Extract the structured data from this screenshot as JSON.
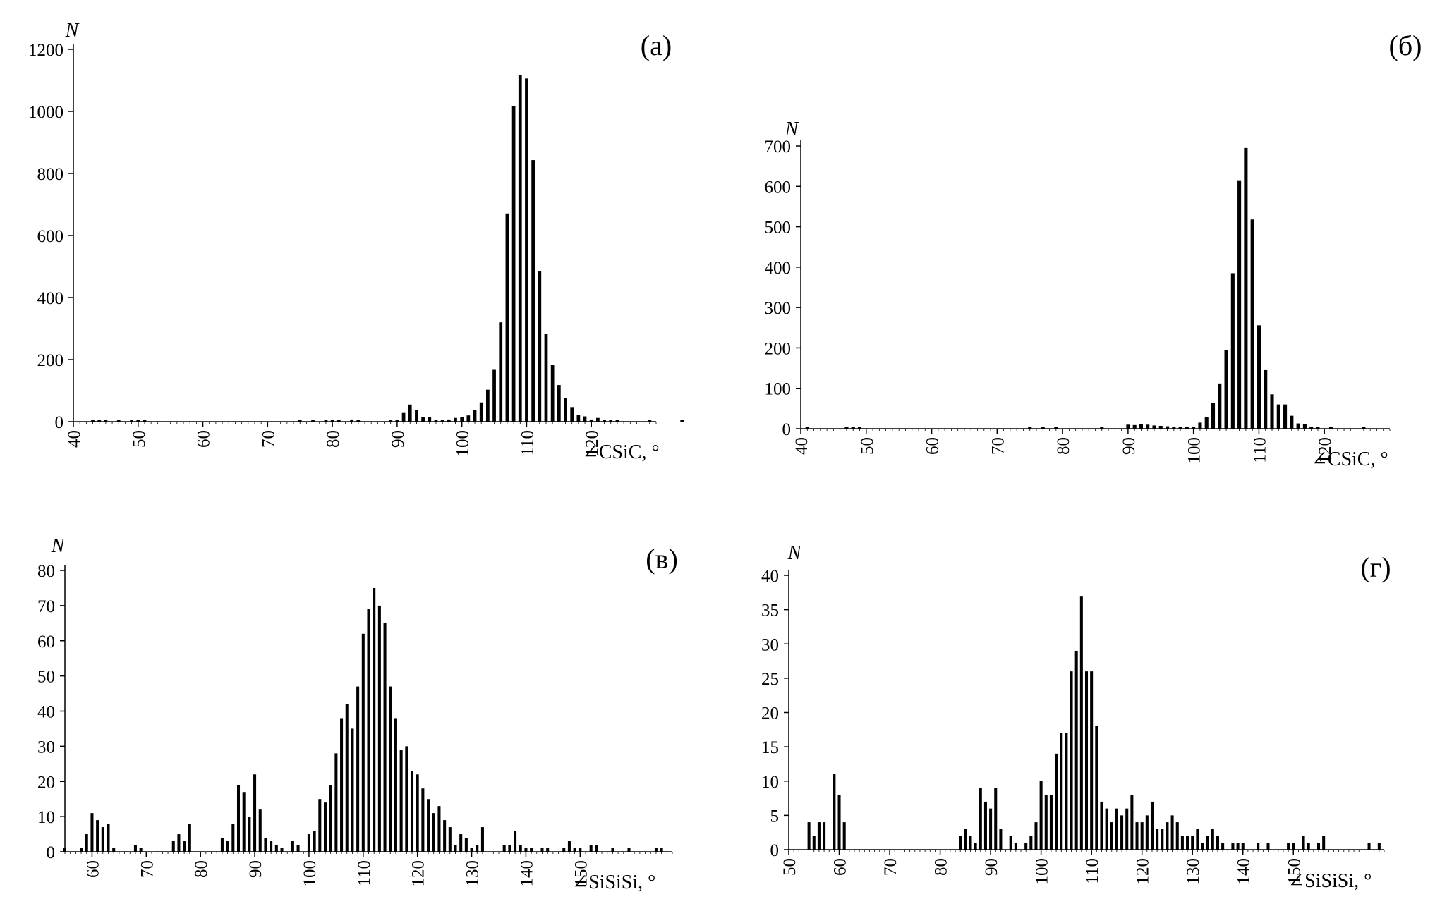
{
  "chart_data": [
    {
      "type": "bar",
      "panel_label": "(а)",
      "ylabel": "N",
      "xlabel": "∠CSiC, °",
      "xlim": [
        40,
        130
      ],
      "ylim": [
        0,
        1200
      ],
      "x_ticks": [
        "40",
        "50",
        "60",
        "70",
        "80",
        "90",
        "100",
        "110",
        "120"
      ],
      "y_ticks": [
        "0",
        "200",
        "400",
        "600",
        "800",
        "1000",
        "1200"
      ],
      "x": [
        43,
        44,
        45,
        47,
        49,
        50,
        51,
        75,
        77,
        79,
        80,
        81,
        83,
        84,
        89,
        90,
        91,
        92,
        93,
        94,
        95,
        96,
        97,
        98,
        99,
        100,
        101,
        102,
        103,
        104,
        105,
        106,
        107,
        108,
        109,
        110,
        111,
        112,
        113,
        114,
        115,
        116,
        117,
        118,
        119,
        120,
        121,
        122,
        123,
        124,
        129,
        134
      ],
      "values": [
        4,
        6,
        3,
        3,
        5,
        3,
        2,
        2,
        5,
        3,
        5,
        3,
        7,
        2,
        3,
        5,
        28,
        55,
        38,
        15,
        14,
        5,
        5,
        7,
        12,
        14,
        20,
        37,
        62,
        103,
        167,
        320,
        671,
        1017,
        1117,
        1106,
        843,
        484,
        282,
        184,
        118,
        77,
        47,
        22,
        17,
        7,
        12,
        6,
        4,
        3,
        2,
        2
      ]
    },
    {
      "type": "bar",
      "panel_label": "(б)",
      "ylabel": "N",
      "xlabel": "∠CSiC, °",
      "xlim": [
        40,
        130
      ],
      "ylim": [
        0,
        700
      ],
      "x_ticks": [
        "40",
        "50",
        "60",
        "70",
        "80",
        "90",
        "100",
        "110",
        "120"
      ],
      "y_ticks": [
        "0",
        "100",
        "200",
        "300",
        "400",
        "500",
        "600",
        "700"
      ],
      "x": [
        41,
        47,
        48,
        49,
        75,
        77,
        79,
        86,
        90,
        91,
        92,
        93,
        94,
        95,
        96,
        97,
        98,
        99,
        100,
        101,
        102,
        103,
        104,
        105,
        106,
        107,
        108,
        109,
        110,
        111,
        112,
        113,
        114,
        115,
        116,
        117,
        118,
        119,
        121,
        126
      ],
      "values": [
        4,
        3,
        4,
        3,
        3,
        3,
        3,
        3,
        10,
        9,
        12,
        10,
        8,
        7,
        6,
        5,
        5,
        5,
        4,
        15,
        28,
        63,
        112,
        195,
        385,
        615,
        695,
        518,
        256,
        145,
        85,
        60,
        60,
        32,
        13,
        12,
        5,
        3,
        3,
        3
      ]
    },
    {
      "type": "bar",
      "panel_label": "(в)",
      "ylabel": "N",
      "xlabel": "∠SiSiSi, °",
      "xlim": [
        55,
        167
      ],
      "ylim": [
        0,
        80
      ],
      "x_ticks": [
        "60",
        "70",
        "80",
        "90",
        "100",
        "110",
        "120",
        "130",
        "140",
        "150"
      ],
      "y_ticks": [
        "0",
        "10",
        "20",
        "30",
        "40",
        "50",
        "60",
        "70",
        "80"
      ],
      "x": [
        55,
        58,
        59,
        60,
        61,
        62,
        63,
        64,
        68,
        69,
        75,
        76,
        77,
        78,
        84,
        85,
        86,
        87,
        88,
        89,
        90,
        91,
        92,
        93,
        94,
        95,
        97,
        98,
        100,
        101,
        102,
        103,
        104,
        105,
        106,
        107,
        108,
        109,
        110,
        111,
        112,
        113,
        114,
        115,
        116,
        117,
        118,
        119,
        120,
        121,
        122,
        123,
        124,
        125,
        126,
        127,
        128,
        129,
        130,
        131,
        132,
        136,
        137,
        138,
        139,
        140,
        141,
        143,
        144,
        147,
        148,
        149,
        150,
        152,
        153,
        156,
        159,
        164,
        165
      ],
      "values": [
        1,
        1,
        5,
        11,
        9,
        7,
        8,
        1,
        2,
        1,
        3,
        5,
        3,
        8,
        4,
        3,
        8,
        19,
        17,
        10,
        22,
        12,
        4,
        3,
        2,
        1,
        3,
        2,
        5,
        6,
        15,
        14,
        19,
        28,
        38,
        42,
        35,
        47,
        62,
        69,
        75,
        70,
        65,
        47,
        38,
        29,
        30,
        23,
        22,
        18,
        15,
        11,
        13,
        9,
        7,
        2,
        5,
        4,
        1,
        2,
        7,
        2,
        2,
        6,
        2,
        1,
        1,
        1,
        1,
        1,
        3,
        1,
        1,
        2,
        2,
        1,
        1,
        1,
        1
      ]
    },
    {
      "type": "bar",
      "panel_label": "(г)",
      "ylabel": "N",
      "xlabel": "∠SiSiSi, °",
      "xlim": [
        50,
        168
      ],
      "ylim": [
        0,
        40
      ],
      "x_ticks": [
        "50",
        "60",
        "70",
        "80",
        "90",
        "100",
        "110",
        "120",
        "130",
        "140",
        "150"
      ],
      "y_ticks": [
        "0",
        "5",
        "10",
        "15",
        "20",
        "25",
        "30",
        "35",
        "40"
      ],
      "x": [
        54,
        55,
        56,
        57,
        59,
        60,
        61,
        84,
        85,
        86,
        87,
        88,
        89,
        90,
        91,
        92,
        94,
        95,
        97,
        98,
        99,
        100,
        101,
        102,
        103,
        104,
        105,
        106,
        107,
        108,
        109,
        110,
        111,
        112,
        113,
        114,
        115,
        116,
        117,
        118,
        119,
        120,
        121,
        122,
        123,
        124,
        125,
        126,
        127,
        128,
        129,
        130,
        131,
        132,
        133,
        134,
        135,
        136,
        138,
        139,
        140,
        143,
        145,
        149,
        150,
        152,
        153,
        155,
        156,
        165,
        167
      ],
      "values": [
        4,
        2,
        4,
        4,
        11,
        8,
        4,
        2,
        3,
        2,
        1,
        9,
        7,
        6,
        9,
        3,
        2,
        1,
        1,
        2,
        4,
        10,
        8,
        8,
        14,
        17,
        17,
        26,
        29,
        37,
        26,
        26,
        18,
        7,
        6,
        4,
        6,
        5,
        6,
        8,
        4,
        4,
        5,
        7,
        3,
        3,
        4,
        5,
        4,
        2,
        2,
        2,
        3,
        1,
        2,
        3,
        2,
        1,
        1,
        1,
        1,
        1,
        1,
        1,
        1,
        2,
        1,
        1,
        2,
        1,
        1
      ]
    }
  ]
}
